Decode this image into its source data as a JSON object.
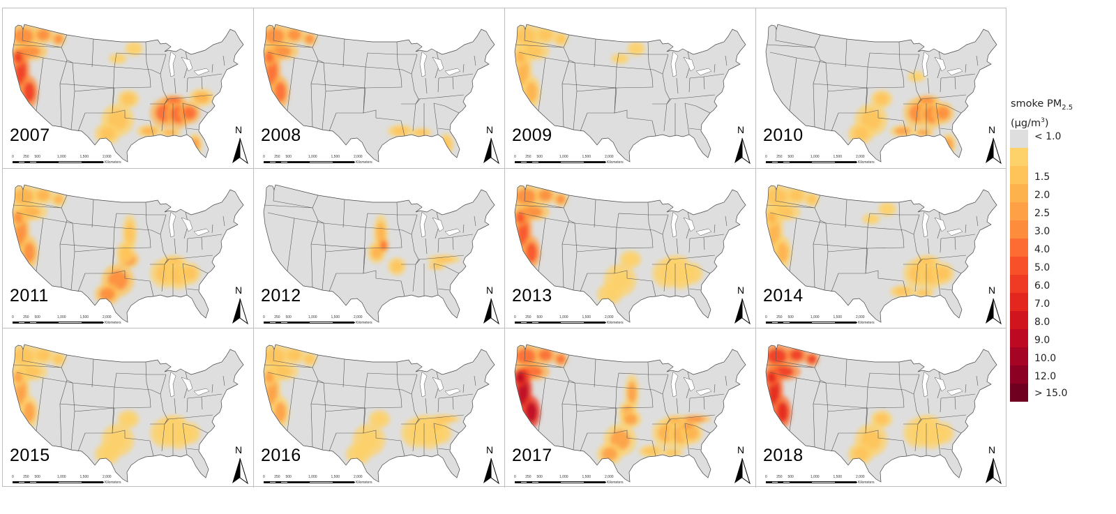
{
  "legend": {
    "title_main": "smoke PM",
    "title_sub": "2.5",
    "title_unit_prefix": "(µg/m",
    "title_unit_sup": "3",
    "title_unit_suffix": ")",
    "classes": [
      {
        "label": "< 1.0",
        "color": "#dedede"
      },
      {
        "label": "",
        "color": "#fdd26a"
      },
      {
        "label": "1.5",
        "color": "#fec45a"
      },
      {
        "label": "2.0",
        "color": "#feb24c"
      },
      {
        "label": "2.5",
        "color": "#fda046"
      },
      {
        "label": "3.0",
        "color": "#fd8d3c"
      },
      {
        "label": "4.0",
        "color": "#fc6c33"
      },
      {
        "label": "5.0",
        "color": "#f8512a"
      },
      {
        "label": "6.0",
        "color": "#ef3a24"
      },
      {
        "label": "7.0",
        "color": "#e3261e"
      },
      {
        "label": "8.0",
        "color": "#d0151f"
      },
      {
        "label": "9.0",
        "color": "#bd0a22"
      },
      {
        "label": "10.0",
        "color": "#a50424"
      },
      {
        "label": "12.0",
        "color": "#8c0023"
      },
      {
        "label": "> 15.0",
        "color": "#700020"
      }
    ]
  },
  "scale_bar": {
    "ticks": [
      "0",
      "250",
      "500",
      "1,000",
      "1,500",
      "2,000"
    ],
    "unit": "Kilometers"
  },
  "north_label": "N",
  "panels": [
    {
      "year": "2007",
      "hotspots": [
        {
          "region": "pacific-northwest",
          "level": 5
        },
        {
          "region": "california",
          "level": 8
        },
        {
          "region": "southeast",
          "level": 6
        },
        {
          "region": "gulf-coast",
          "level": 3
        },
        {
          "region": "southern-plains",
          "level": 2
        },
        {
          "region": "florida",
          "level": 4
        },
        {
          "region": "northern-plains",
          "level": 1
        },
        {
          "region": "mid-atlantic",
          "level": 3
        }
      ]
    },
    {
      "year": "2008",
      "hotspots": [
        {
          "region": "pacific-northwest",
          "level": 5
        },
        {
          "region": "california",
          "level": 6
        },
        {
          "region": "florida",
          "level": 2
        },
        {
          "region": "gulf-coast",
          "level": 2
        }
      ]
    },
    {
      "year": "2009",
      "hotspots": [
        {
          "region": "pacific-northwest",
          "level": 2
        },
        {
          "region": "california",
          "level": 3
        },
        {
          "region": "northern-plains",
          "level": 1
        }
      ]
    },
    {
      "year": "2010",
      "hotspots": [
        {
          "region": "southeast",
          "level": 5
        },
        {
          "region": "gulf-coast",
          "level": 4
        },
        {
          "region": "southern-plains",
          "level": 2
        },
        {
          "region": "florida",
          "level": 4
        },
        {
          "region": "midwest",
          "level": 1
        }
      ]
    },
    {
      "year": "2011",
      "hotspots": [
        {
          "region": "pacific-northwest",
          "level": 3
        },
        {
          "region": "california",
          "level": 5
        },
        {
          "region": "southern-plains",
          "level": 5
        },
        {
          "region": "southeast",
          "level": 2
        },
        {
          "region": "great-plains",
          "level": 2
        }
      ]
    },
    {
      "year": "2012",
      "hotspots": [
        {
          "region": "great-plains",
          "level": 3
        },
        {
          "region": "kansas-flint-hills",
          "level": 6
        },
        {
          "region": "ozarks",
          "level": 2
        },
        {
          "region": "appalachia",
          "level": 2
        }
      ]
    },
    {
      "year": "2013",
      "hotspots": [
        {
          "region": "pacific-northwest",
          "level": 5
        },
        {
          "region": "california",
          "level": 7
        },
        {
          "region": "southeast",
          "level": 1
        },
        {
          "region": "southern-plains",
          "level": 1
        }
      ]
    },
    {
      "year": "2014",
      "hotspots": [
        {
          "region": "pacific-northwest",
          "level": 2
        },
        {
          "region": "california",
          "level": 3
        },
        {
          "region": "southeast",
          "level": 2
        },
        {
          "region": "gulf-coast",
          "level": 2
        },
        {
          "region": "northern-plains",
          "level": 1
        }
      ]
    },
    {
      "year": "2015",
      "hotspots": [
        {
          "region": "pacific-northwest",
          "level": 2
        },
        {
          "region": "california",
          "level": 4
        },
        {
          "region": "southeast",
          "level": 1
        },
        {
          "region": "southern-plains",
          "level": 1
        }
      ]
    },
    {
      "year": "2016",
      "hotspots": [
        {
          "region": "pacific-northwest",
          "level": 2
        },
        {
          "region": "california",
          "level": 4
        },
        {
          "region": "southeast",
          "level": 1
        },
        {
          "region": "southern-plains",
          "level": 1
        },
        {
          "region": "appalachia",
          "level": 2
        }
      ]
    },
    {
      "year": "2017",
      "hotspots": [
        {
          "region": "pacific-northwest",
          "level": 6
        },
        {
          "region": "california",
          "level": 11
        },
        {
          "region": "great-plains",
          "level": 4
        },
        {
          "region": "southern-plains",
          "level": 4
        },
        {
          "region": "southeast",
          "level": 3
        },
        {
          "region": "appalachia",
          "level": 5
        },
        {
          "region": "gulf-coast",
          "level": 2
        }
      ]
    },
    {
      "year": "2018",
      "hotspots": [
        {
          "region": "pacific-northwest",
          "level": 8
        },
        {
          "region": "california",
          "level": 9
        },
        {
          "region": "southern-plains",
          "level": 2
        },
        {
          "region": "southeast",
          "level": 1
        }
      ]
    }
  ]
}
